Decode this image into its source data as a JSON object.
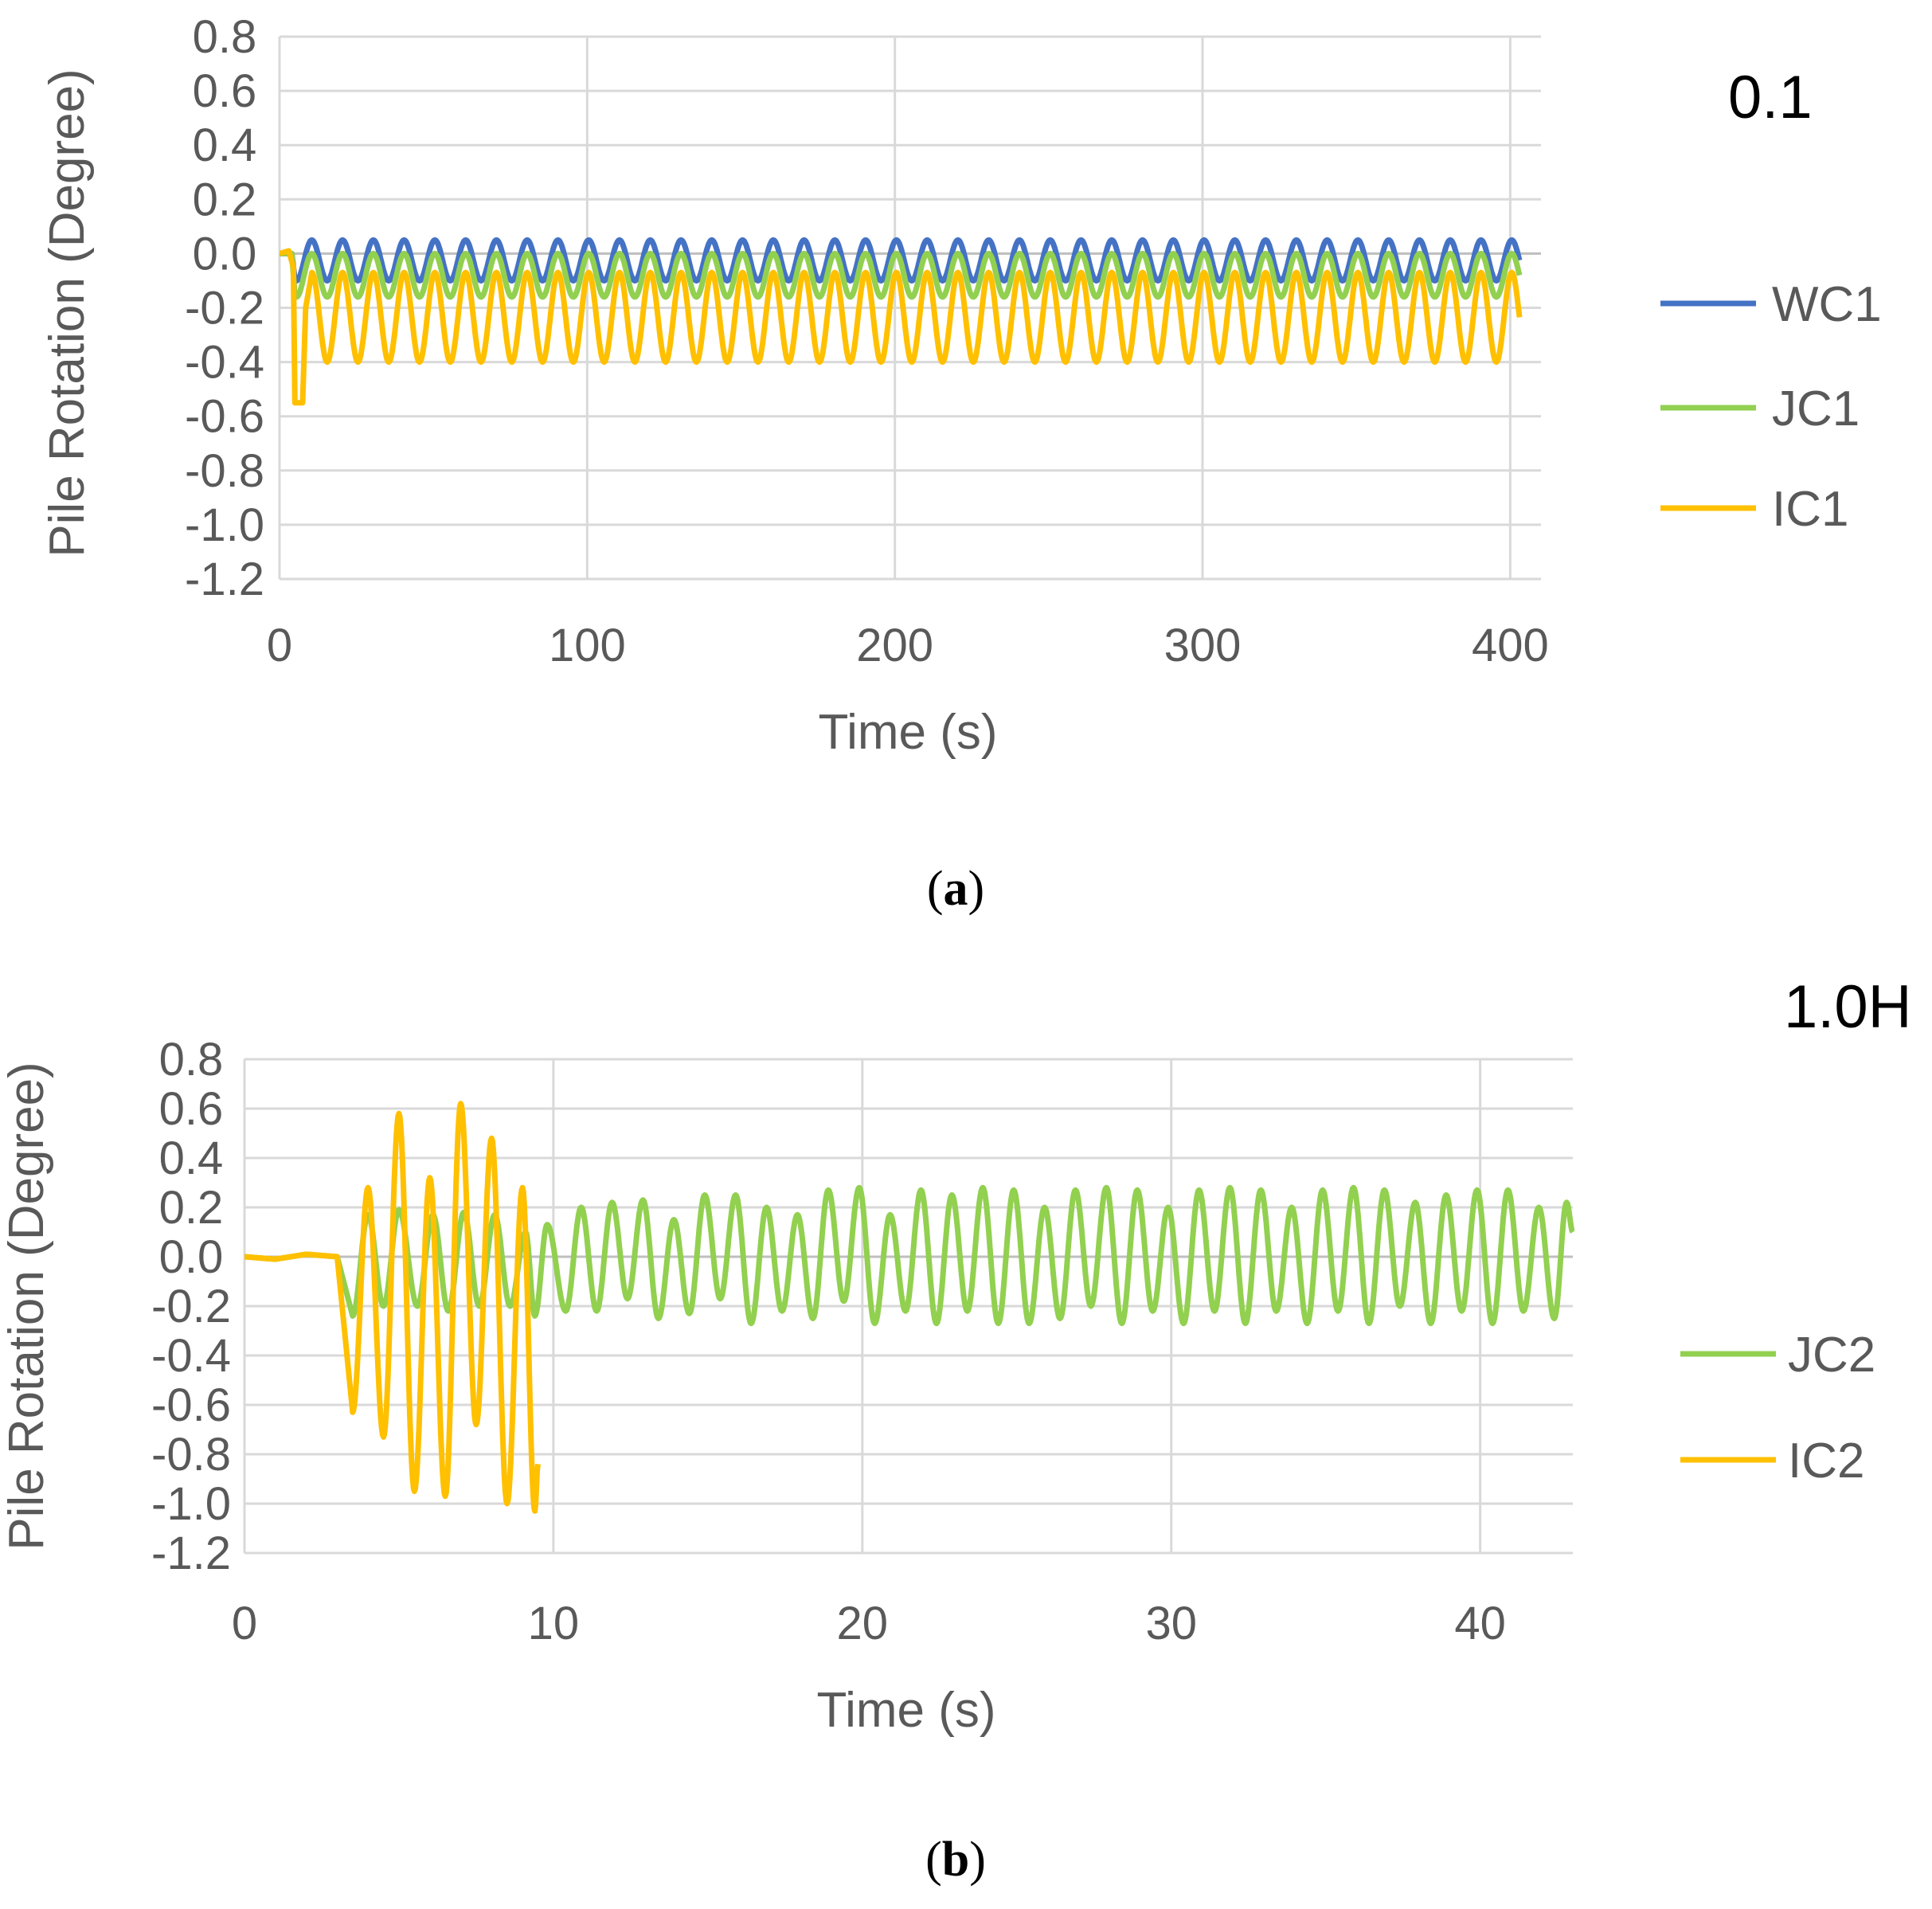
{
  "chart_data": [
    {
      "type": "line",
      "panel": "a",
      "caption_letter": "a",
      "corner_label": "0.1",
      "xlabel": "Time (s)",
      "ylabel": "Pile Rotation (Degree)",
      "xlim": [
        0,
        410
      ],
      "ylim": [
        -1.2,
        0.8
      ],
      "xticks": [
        0,
        100,
        200,
        300,
        400
      ],
      "yticks": [
        0.8,
        0.6,
        0.4,
        0.2,
        0.0,
        -0.2,
        -0.4,
        -0.6,
        -0.8,
        -1.0,
        -1.2
      ],
      "ytick_labels": [
        "0.8",
        "0.6",
        "0.4",
        "0.2",
        "0.0",
        "-0.2",
        "-0.4",
        "-0.6",
        "-0.8",
        "-1.0",
        "-1.2"
      ],
      "grid": true,
      "legend_position": "right",
      "series": [
        {
          "name": "WC1",
          "color": "#4472c4",
          "description": "steady oscillation after ~5 s, period ~10 s, t from 0 to 403 s",
          "oscillation": {
            "t_start": 5,
            "t_end": 403,
            "period": 10.0,
            "phase_time": 10.5,
            "max": 0.05,
            "min": -0.1
          },
          "initial_value": 0.0
        },
        {
          "name": "JC1",
          "color": "#92d050",
          "description": "steady oscillation after ~5 s, period ~10 s",
          "oscillation": {
            "t_start": 5,
            "t_end": 403,
            "period": 10.0,
            "phase_time": 10.5,
            "max": 0.0,
            "min": -0.16
          },
          "initial_value": 0.0
        },
        {
          "name": "IC1",
          "color": "#ffc000",
          "description": "initial dip to -0.55 near 5-7 s, then steady oscillation, period ~10 s",
          "points_initial": [
            [
              0,
              0.0
            ],
            [
              3,
              0.01
            ],
            [
              4.5,
              -0.05
            ],
            [
              5,
              -0.55
            ],
            [
              7.5,
              -0.55
            ],
            [
              8.5,
              -0.2
            ],
            [
              10.5,
              0.0
            ]
          ],
          "oscillation": {
            "t_start": 10.5,
            "t_end": 403,
            "period": 10.0,
            "phase_time": 10.5,
            "max": -0.07,
            "min": -0.4
          },
          "initial_value": 0.0
        }
      ]
    },
    {
      "type": "line",
      "panel": "b",
      "caption_letter": "b",
      "corner_label": "1.0H",
      "xlabel": "Time (s)",
      "ylabel": "Pile Rotation (Degree)",
      "xlim": [
        0,
        43
      ],
      "ylim": [
        -1.2,
        0.8
      ],
      "xticks": [
        0,
        10,
        20,
        30,
        40
      ],
      "yticks": [
        0.8,
        0.6,
        0.4,
        0.2,
        0.0,
        -0.2,
        -0.4,
        -0.6,
        -0.8,
        -1.0,
        -1.2
      ],
      "ytick_labels": [
        "0.8",
        "0.6",
        "0.4",
        "0.2",
        "0.0",
        "-0.2",
        "-0.4",
        "-0.6",
        "-0.8",
        "-1.0",
        "-1.2"
      ],
      "grid": true,
      "legend_position": "right",
      "series": [
        {
          "name": "JC2",
          "color": "#92d050",
          "description": "flat near 0 until ~3 s, then oscillation with period ~1 s and amplitude ~0.2-0.3",
          "points_initial": [
            [
              0,
              0.0
            ],
            [
              1,
              -0.01
            ],
            [
              2,
              0.01
            ],
            [
              3,
              0.0
            ]
          ],
          "peaks": [
            [
              3.5,
              -0.24
            ],
            [
              4.0,
              0.17
            ],
            [
              4.5,
              -0.2
            ],
            [
              5.0,
              0.19
            ],
            [
              5.6,
              -0.2
            ],
            [
              6.1,
              0.17
            ],
            [
              6.6,
              -0.22
            ],
            [
              7.1,
              0.18
            ],
            [
              7.6,
              -0.2
            ],
            [
              8.1,
              0.17
            ],
            [
              8.6,
              -0.2
            ],
            [
              9.1,
              0.1
            ],
            [
              9.4,
              -0.24
            ],
            [
              9.8,
              0.13
            ],
            [
              10.4,
              -0.22
            ],
            [
              10.9,
              0.2
            ],
            [
              11.4,
              -0.22
            ],
            [
              11.9,
              0.22
            ],
            [
              12.4,
              -0.17
            ],
            [
              12.9,
              0.23
            ],
            [
              13.4,
              -0.25
            ],
            [
              13.9,
              0.15
            ],
            [
              14.4,
              -0.23
            ],
            [
              14.9,
              0.25
            ],
            [
              15.4,
              -0.17
            ],
            [
              15.9,
              0.25
            ],
            [
              16.4,
              -0.27
            ],
            [
              16.9,
              0.2
            ],
            [
              17.4,
              -0.22
            ],
            [
              17.9,
              0.17
            ],
            [
              18.4,
              -0.25
            ],
            [
              18.9,
              0.27
            ],
            [
              19.4,
              -0.18
            ],
            [
              19.9,
              0.28
            ],
            [
              20.4,
              -0.27
            ],
            [
              20.9,
              0.17
            ],
            [
              21.4,
              -0.22
            ],
            [
              21.9,
              0.27
            ],
            [
              22.4,
              -0.27
            ],
            [
              22.9,
              0.25
            ],
            [
              23.4,
              -0.22
            ],
            [
              23.9,
              0.28
            ],
            [
              24.4,
              -0.27
            ],
            [
              24.9,
              0.27
            ],
            [
              25.4,
              -0.27
            ],
            [
              25.9,
              0.2
            ],
            [
              26.4,
              -0.25
            ],
            [
              26.9,
              0.27
            ],
            [
              27.4,
              -0.2
            ],
            [
              27.9,
              0.28
            ],
            [
              28.4,
              -0.27
            ],
            [
              28.9,
              0.27
            ],
            [
              29.4,
              -0.22
            ],
            [
              29.9,
              0.2
            ],
            [
              30.4,
              -0.27
            ],
            [
              30.9,
              0.27
            ],
            [
              31.4,
              -0.22
            ],
            [
              31.9,
              0.28
            ],
            [
              32.4,
              -0.27
            ],
            [
              32.9,
              0.27
            ],
            [
              33.4,
              -0.22
            ],
            [
              33.9,
              0.2
            ],
            [
              34.4,
              -0.27
            ],
            [
              34.9,
              0.27
            ],
            [
              35.4,
              -0.22
            ],
            [
              35.9,
              0.28
            ],
            [
              36.4,
              -0.27
            ],
            [
              36.9,
              0.27
            ],
            [
              37.4,
              -0.2
            ],
            [
              37.9,
              0.22
            ],
            [
              38.4,
              -0.27
            ],
            [
              38.9,
              0.25
            ],
            [
              39.4,
              -0.22
            ],
            [
              39.9,
              0.27
            ],
            [
              40.4,
              -0.27
            ],
            [
              40.9,
              0.27
            ],
            [
              41.4,
              -0.22
            ],
            [
              41.9,
              0.2
            ],
            [
              42.4,
              -0.25
            ],
            [
              42.8,
              0.22
            ],
            [
              43.0,
              0.1
            ]
          ]
        },
        {
          "name": "IC2",
          "color": "#ffc000",
          "description": "flat near 0 until ~3 s, then large growing oscillation, ends near 9.5 s",
          "points_initial": [
            [
              0,
              0.0
            ],
            [
              1,
              -0.01
            ],
            [
              2,
              0.01
            ],
            [
              3,
              0.0
            ]
          ],
          "peaks": [
            [
              3.5,
              -0.63
            ],
            [
              4.0,
              0.28
            ],
            [
              4.5,
              -0.73
            ],
            [
              5.0,
              0.58
            ],
            [
              5.5,
              -0.95
            ],
            [
              6.0,
              0.32
            ],
            [
              6.5,
              -0.97
            ],
            [
              7.0,
              0.62
            ],
            [
              7.5,
              -0.68
            ],
            [
              8.0,
              0.48
            ],
            [
              8.5,
              -1.0
            ],
            [
              9.0,
              0.28
            ],
            [
              9.4,
              -1.03
            ],
            [
              9.5,
              -0.84
            ]
          ]
        }
      ]
    }
  ]
}
